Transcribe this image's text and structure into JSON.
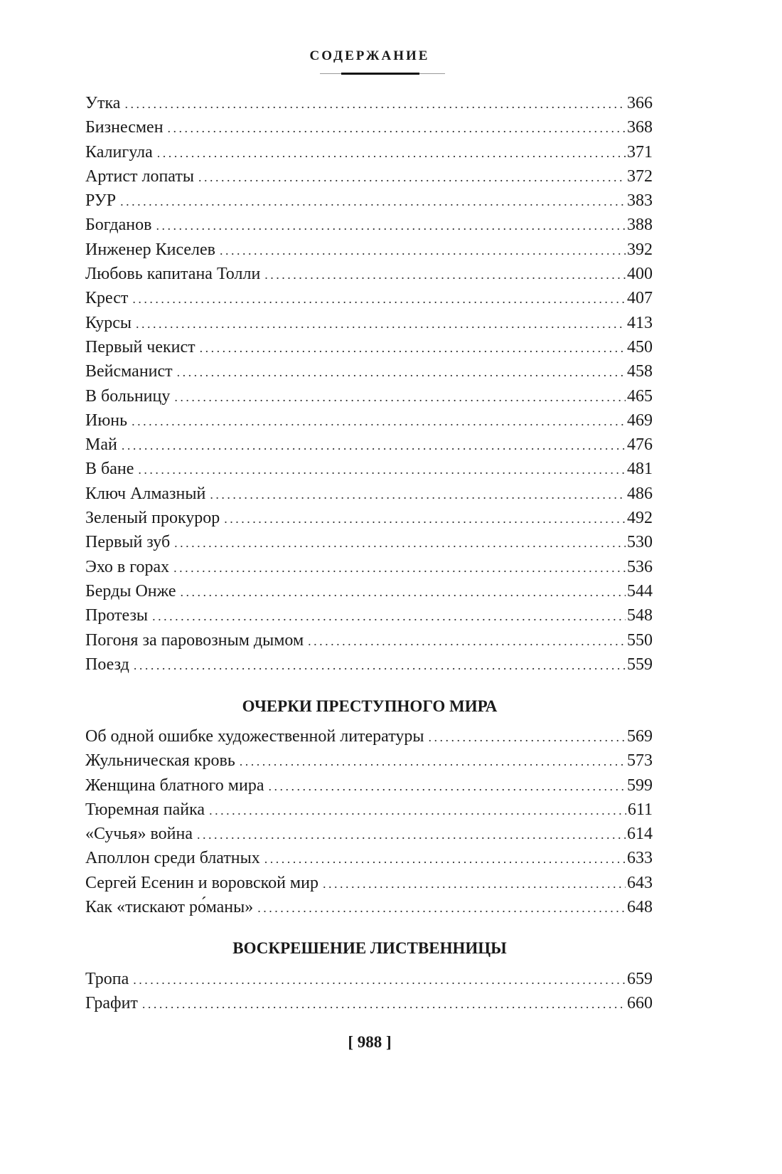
{
  "header": {
    "title": "СОДЕРЖАНИЕ"
  },
  "toc_main": [
    {
      "title": "Утка",
      "page": "366"
    },
    {
      "title": "Бизнесмен",
      "page": "368"
    },
    {
      "title": "Калигула",
      "page": "371"
    },
    {
      "title": "Артист лопаты",
      "page": "372"
    },
    {
      "title": "РУР",
      "page": "383"
    },
    {
      "title": "Богданов",
      "page": "388"
    },
    {
      "title": "Инженер Киселев",
      "page": "392"
    },
    {
      "title": "Любовь капитана Толли",
      "page": "400"
    },
    {
      "title": "Крест",
      "page": "407"
    },
    {
      "title": "Курсы",
      "page": "413"
    },
    {
      "title": "Первый чекист",
      "page": "450"
    },
    {
      "title": "Вейсманист",
      "page": "458"
    },
    {
      "title": "В больницу",
      "page": "465"
    },
    {
      "title": "Июнь",
      "page": "469"
    },
    {
      "title": "Май",
      "page": "476"
    },
    {
      "title": "В бане",
      "page": "481"
    },
    {
      "title": "Ключ Алмазный",
      "page": "486"
    },
    {
      "title": "Зеленый прокурор",
      "page": "492"
    },
    {
      "title": "Первый зуб",
      "page": "530"
    },
    {
      "title": "Эхо в горах",
      "page": "536"
    },
    {
      "title": "Берды Онже",
      "page": "544"
    },
    {
      "title": "Протезы",
      "page": "548"
    },
    {
      "title": "Погоня за паровозным дымом",
      "page": "550"
    },
    {
      "title": "Поезд",
      "page": "559"
    }
  ],
  "sections": [
    {
      "heading": "ОЧЕРКИ ПРЕСТУПНОГО МИРА",
      "items": [
        {
          "title": "Об одной ошибке художественной литературы",
          "page": "569"
        },
        {
          "title": "Жульническая кровь",
          "page": "573"
        },
        {
          "title": "Женщина блатного мира",
          "page": "599"
        },
        {
          "title": "Тюремная пайка",
          "page": "611"
        },
        {
          "title": "«Сучья» война",
          "page": "614"
        },
        {
          "title": "Аполлон среди блатных",
          "page": "633"
        },
        {
          "title": "Сергей Есенин и воровской мир",
          "page": "643"
        },
        {
          "title": "Как «тискают ро́маны»",
          "page": "648"
        }
      ]
    },
    {
      "heading": "ВОСКРЕШЕНИЕ ЛИСТВЕННИЦЫ",
      "items": [
        {
          "title": "Тропа",
          "page": "659"
        },
        {
          "title": "Графит",
          "page": "660"
        }
      ]
    }
  ],
  "footer": {
    "page_number": "[ 988 ]"
  }
}
